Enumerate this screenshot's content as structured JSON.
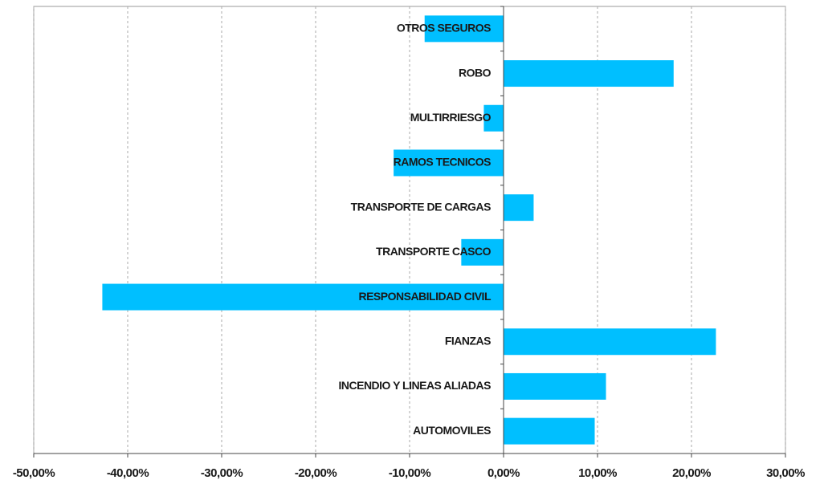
{
  "chart_data": {
    "type": "hbar",
    "categories": [
      "OTROS SEGUROS",
      "ROBO",
      "MULTIRRIESGO",
      "RAMOS TECNICOS",
      "TRANSPORTE DE CARGAS",
      "TRANSPORTE CASCO",
      "RESPONSABILIDAD CIVIL",
      "FIANZAS",
      "INCENDIO Y LINEAS ALIADAS",
      "AUTOMOVILES"
    ],
    "values": [
      -8.4,
      18.1,
      -2.1,
      -11.7,
      3.2,
      -4.5,
      -42.7,
      22.6,
      10.9,
      9.7
    ],
    "color": "#00bfff",
    "xlim": [
      -50,
      30
    ],
    "xticks": [
      {
        "value": -50,
        "label": "-50,00%"
      },
      {
        "value": -40,
        "label": "-40,00%"
      },
      {
        "value": -30,
        "label": "-30,00%"
      },
      {
        "value": -20,
        "label": "-20,00%"
      },
      {
        "value": -10,
        "label": "-10,00%"
      },
      {
        "value": 0,
        "label": "0,00%"
      },
      {
        "value": 10,
        "label": "10,00%"
      },
      {
        "value": 20,
        "label": "20,00%"
      },
      {
        "value": 30,
        "label": "30,00%"
      }
    ],
    "grid": true
  }
}
